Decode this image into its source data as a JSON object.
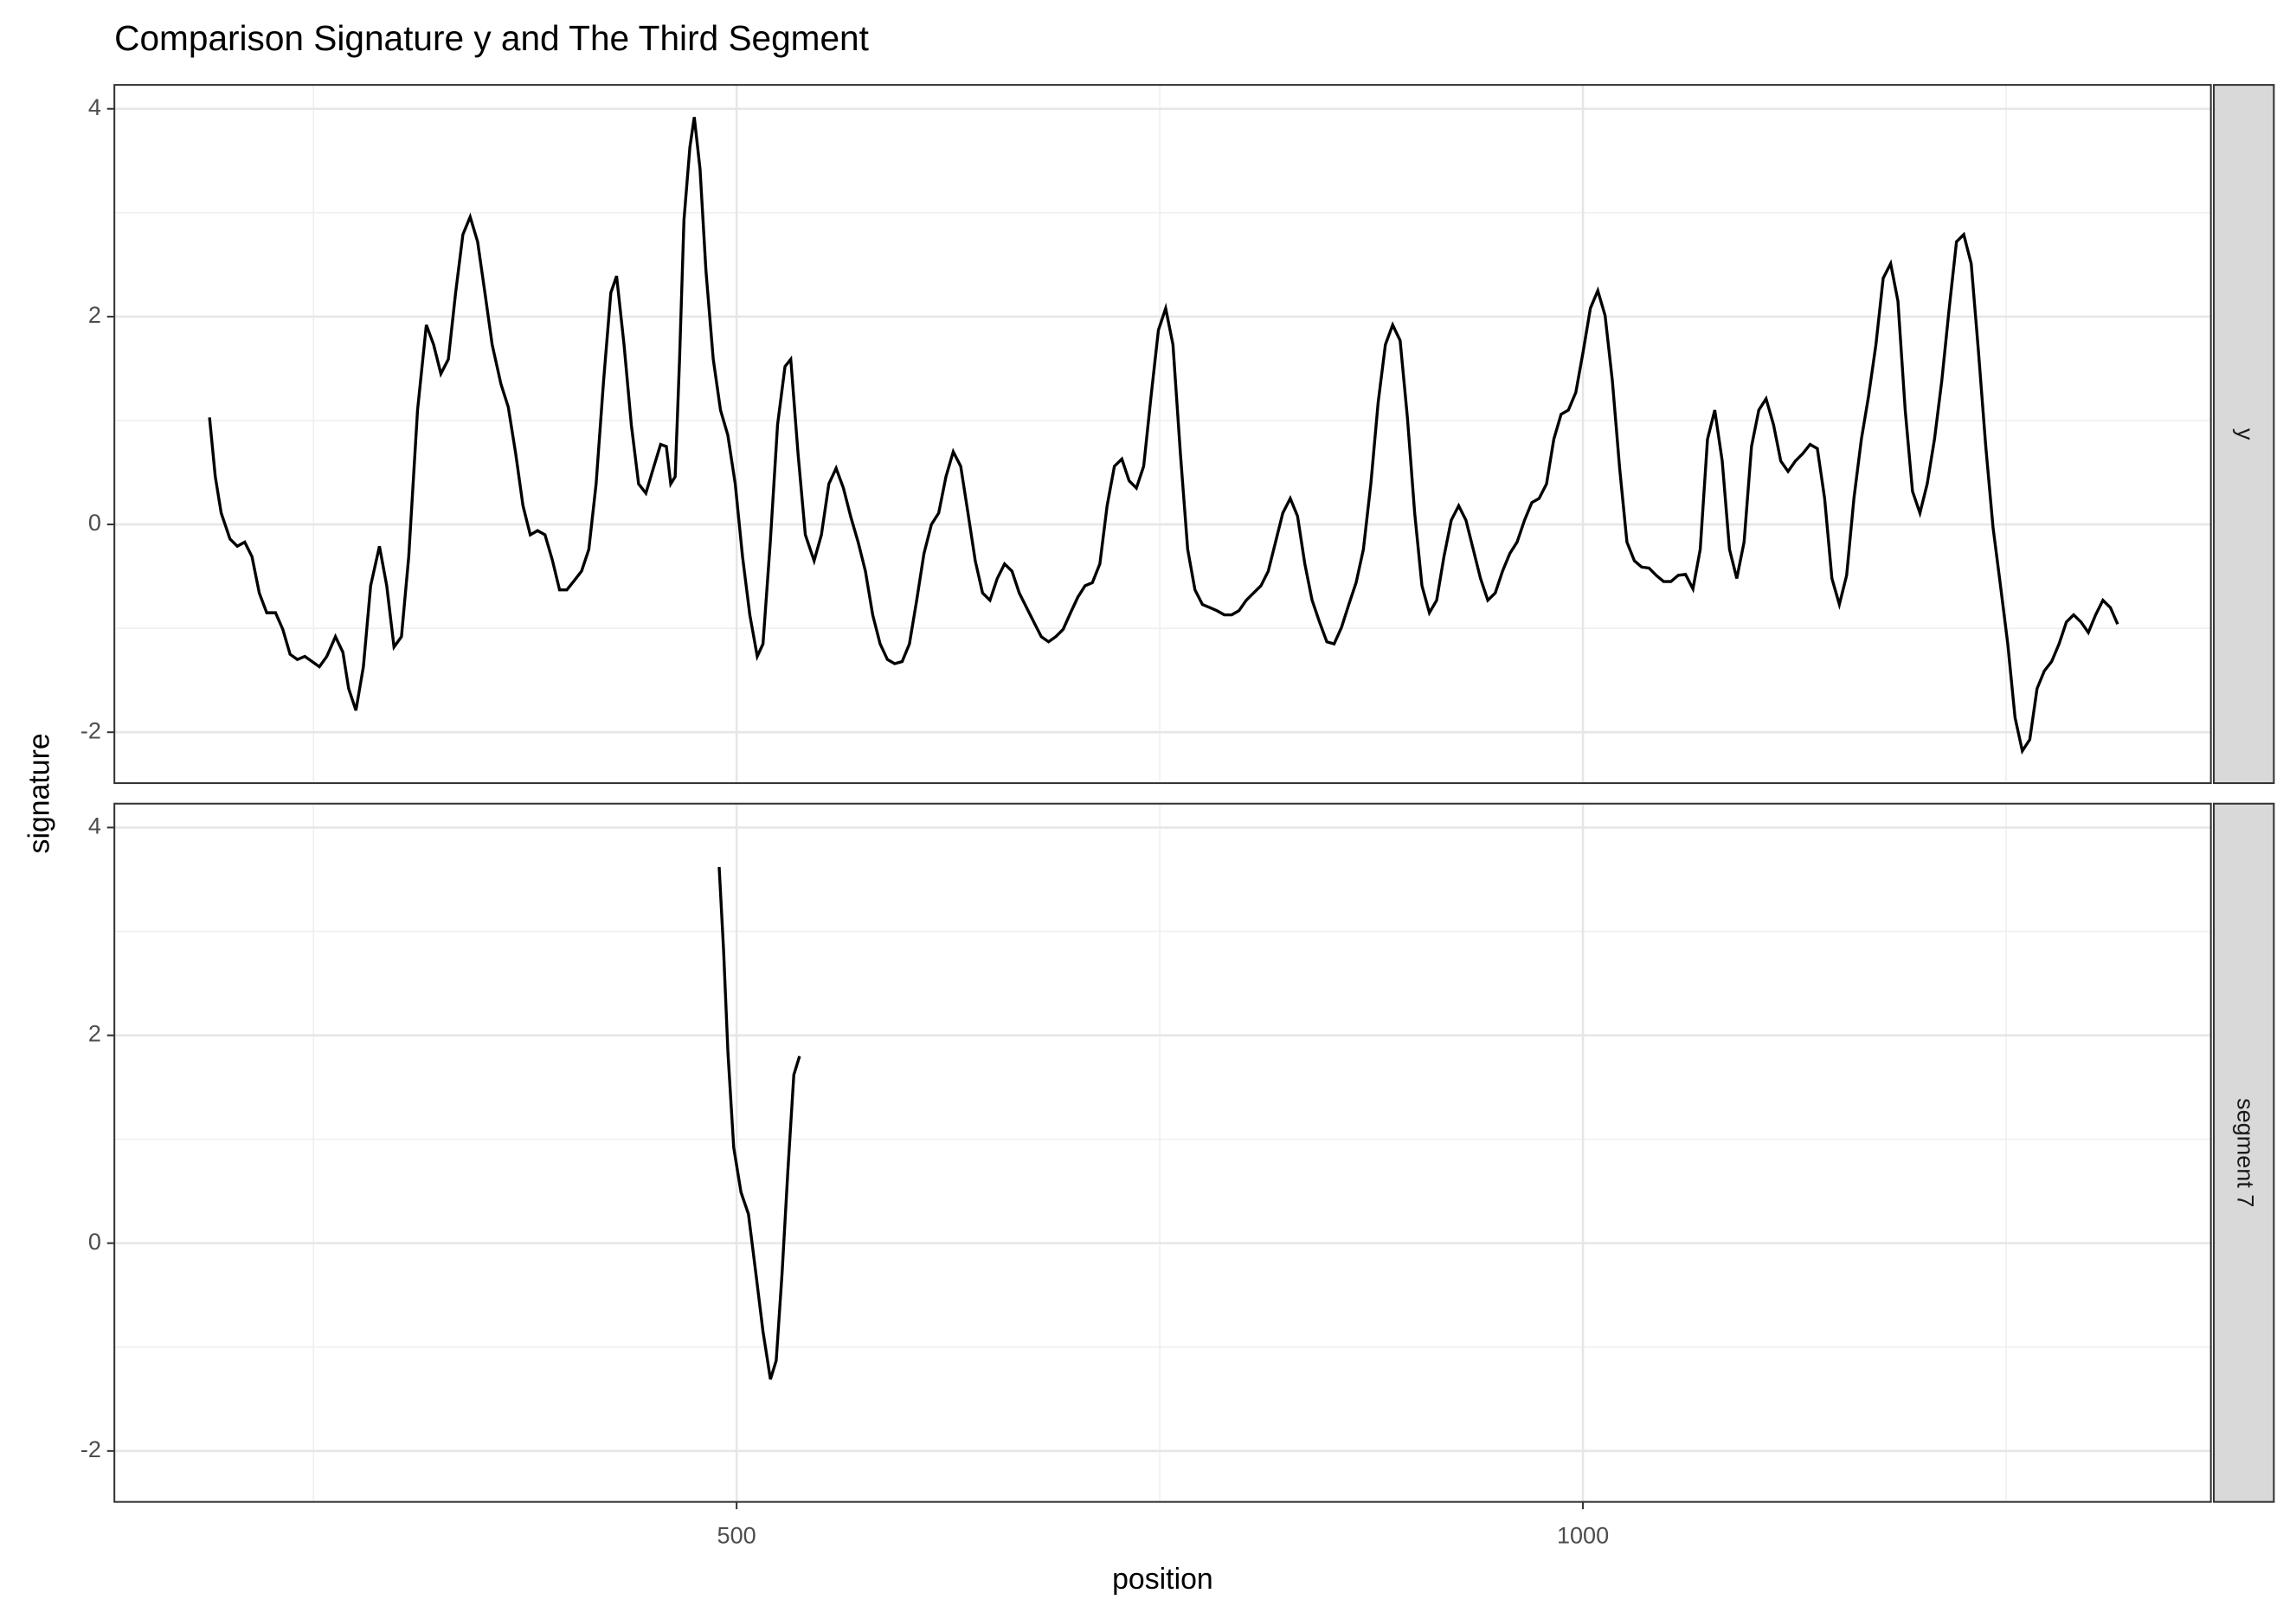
{
  "chart_data": {
    "type": "line",
    "title": "Comparison Signature y and The Third Segment",
    "x_label": "position",
    "y_label": "signature",
    "facets": true,
    "grid": true,
    "xlim": [
      132.4,
      1371
    ],
    "xticks": [
      500,
      1000
    ],
    "ylim": [
      -2.49,
      4.23
    ],
    "yticks": [
      -2,
      0,
      2,
      4
    ],
    "series": [
      {
        "name": "y",
        "color": "#000000",
        "x": [
          188.6,
          192,
          195.5,
          200.7,
          205,
          209.4,
          213.7,
          218,
          222.4,
          227.6,
          231.9,
          236.2,
          240.5,
          244.9,
          249.2,
          253.5,
          257.9,
          263,
          267.4,
          270.8,
          275.1,
          279.5,
          283.8,
          289,
          293.3,
          297.6,
          302,
          306.3,
          311.5,
          316.7,
          321,
          325.3,
          329.7,
          334,
          338.3,
          342.6,
          347,
          351.3,
          355.6,
          360.8,
          365.1,
          369.5,
          373.8,
          378.1,
          382.4,
          386.8,
          391.1,
          395.4,
          399.7,
          404.1,
          408.4,
          412.7,
          417,
          421.4,
          425.7,
          429.1,
          433.5,
          437.8,
          442.1,
          446.4,
          450.8,
          455.1,
          458.5,
          461.1,
          463.7,
          466.3,
          468.9,
          472.4,
          475,
          478.4,
          481.9,
          486.2,
          490.5,
          494.8,
          499.2,
          503.5,
          507.8,
          512.2,
          515.6,
          519.9,
          524.2,
          528.6,
          532,
          536.3,
          540.6,
          545.8,
          550.1,
          554.5,
          558.8,
          563.1,
          567.5,
          571.8,
          576.1,
          580.4,
          584.8,
          589.1,
          593.4,
          597.8,
          602.1,
          606.4,
          610.7,
          615.1,
          619.4,
          623.7,
          628,
          632.4,
          636.7,
          641,
          645.3,
          649.7,
          654,
          658.3,
          662.7,
          667,
          671.3,
          675.6,
          680,
          684.3,
          688.6,
          692.9,
          697.3,
          701.6,
          705.9,
          710.2,
          714.6,
          718.9,
          723.2,
          727.6,
          731.9,
          736.2,
          740.5,
          744.9,
          749.2,
          753.5,
          757.8,
          762.2,
          766.5,
          770.8,
          775.2,
          779.5,
          783.8,
          788.1,
          792.5,
          796.8,
          801.1,
          805.4,
          809.8,
          814.1,
          818.4,
          822.7,
          827.1,
          831.4,
          835.7,
          840,
          844.4,
          848.7,
          853,
          857.4,
          861.7,
          866,
          870.3,
          874.7,
          879,
          883.3,
          887.6,
          892,
          896.3,
          900.6,
          904.9,
          909.3,
          913.6,
          917.9,
          922.2,
          926.6,
          930.9,
          935.2,
          939.5,
          943.8,
          948.2,
          952.5,
          956.8,
          961.1,
          965.5,
          969.8,
          974.1,
          978.5,
          982.8,
          987.1,
          991.4,
          995.8,
          1000.1,
          1004.4,
          1008.8,
          1013.1,
          1017.4,
          1021.7,
          1026,
          1030.4,
          1034.7,
          1039,
          1043.3,
          1047.7,
          1052,
          1056.3,
          1060.6,
          1065,
          1069.3,
          1073.6,
          1077.9,
          1082.3,
          1086.6,
          1090.9,
          1095.2,
          1099.6,
          1103.9,
          1108.2,
          1112.6,
          1116.9,
          1121.2,
          1125.5,
          1129.8,
          1134.2,
          1138.5,
          1142.8,
          1147.1,
          1151.5,
          1155.8,
          1160.1,
          1164.5,
          1168.8,
          1173.1,
          1177.4,
          1181.8,
          1186.1,
          1190.4,
          1194.7,
          1199.1,
          1203.4,
          1207.7,
          1212,
          1216.4,
          1220.7,
          1225,
          1229.4,
          1233.7,
          1238,
          1242.3,
          1246.7,
          1251,
          1255.3,
          1259.6,
          1264,
          1268.3,
          1272.6,
          1276.9,
          1281.3,
          1285.6,
          1289.9,
          1294.3,
          1298.6,
          1302.9,
          1307.2,
          1311.6,
          1315.9
        ],
        "values": [
          1.03,
          0.46,
          0.11,
          -0.14,
          -0.21,
          -0.17,
          -0.31,
          -0.66,
          -0.85,
          -0.85,
          -1.01,
          -1.25,
          -1.3,
          -1.27,
          -1.32,
          -1.37,
          -1.27,
          -1.08,
          -1.23,
          -1.58,
          -1.79,
          -1.37,
          -0.59,
          -0.21,
          -0.59,
          -1.18,
          -1.08,
          -0.31,
          1.1,
          1.92,
          1.73,
          1.45,
          1.59,
          2.23,
          2.79,
          2.96,
          2.72,
          2.23,
          1.73,
          1.35,
          1.13,
          0.68,
          0.18,
          -0.1,
          -0.06,
          -0.1,
          -0.34,
          -0.63,
          -0.63,
          -0.54,
          -0.45,
          -0.24,
          0.39,
          1.38,
          2.23,
          2.39,
          1.73,
          0.96,
          0.39,
          0.3,
          0.54,
          0.77,
          0.75,
          0.39,
          0.46,
          1.59,
          2.93,
          3.63,
          3.92,
          3.42,
          2.44,
          1.59,
          1.1,
          0.86,
          0.39,
          -0.31,
          -0.87,
          -1.27,
          -1.15,
          -0.17,
          0.96,
          1.52,
          1.59,
          0.68,
          -0.1,
          -0.35,
          -0.1,
          0.39,
          0.54,
          0.35,
          0.07,
          -0.17,
          -0.45,
          -0.87,
          -1.15,
          -1.3,
          -1.34,
          -1.32,
          -1.15,
          -0.73,
          -0.28,
          0,
          0.11,
          0.46,
          0.7,
          0.56,
          0.11,
          -0.35,
          -0.66,
          -0.73,
          -0.52,
          -0.38,
          -0.45,
          -0.66,
          -0.8,
          -0.94,
          -1.08,
          -1.13,
          -1.08,
          -1.01,
          -0.85,
          -0.7,
          -0.59,
          -0.56,
          -0.38,
          0.18,
          0.56,
          0.63,
          0.42,
          0.35,
          0.56,
          1.24,
          1.87,
          2.08,
          1.73,
          0.68,
          -0.24,
          -0.63,
          -0.77,
          -0.8,
          -0.83,
          -0.87,
          -0.87,
          -0.83,
          -0.73,
          -0.66,
          -0.59,
          -0.45,
          -0.17,
          0.11,
          0.25,
          0.08,
          -0.38,
          -0.73,
          -0.94,
          -1.13,
          -1.15,
          -0.99,
          -0.77,
          -0.56,
          -0.24,
          0.39,
          1.17,
          1.73,
          1.92,
          1.77,
          1.03,
          0.11,
          -0.59,
          -0.85,
          -0.73,
          -0.31,
          0.04,
          0.18,
          0.04,
          -0.24,
          -0.52,
          -0.73,
          -0.66,
          -0.45,
          -0.28,
          -0.17,
          0.04,
          0.21,
          0.25,
          0.39,
          0.82,
          1.06,
          1.1,
          1.27,
          1.66,
          2.08,
          2.25,
          2.01,
          1.38,
          0.54,
          -0.17,
          -0.35,
          -0.41,
          -0.42,
          -0.49,
          -0.55,
          -0.55,
          -0.49,
          -0.48,
          -0.62,
          -0.24,
          0.82,
          1.1,
          0.61,
          -0.24,
          -0.52,
          -0.17,
          0.75,
          1.1,
          1.21,
          0.96,
          0.61,
          0.51,
          0.61,
          0.68,
          0.77,
          0.73,
          0.25,
          -0.52,
          -0.77,
          -0.49,
          0.25,
          0.82,
          1.24,
          1.73,
          2.37,
          2.51,
          2.15,
          1.1,
          0.32,
          0.11,
          0.39,
          0.82,
          1.38,
          2.08,
          2.72,
          2.79,
          2.51,
          1.66,
          0.75,
          -0.03,
          -0.59,
          -1.15,
          -1.86,
          -2.18,
          -2.07,
          -1.58,
          -1.41,
          -1.32,
          -1.15,
          -0.94,
          -0.87,
          -0.94,
          -1.04,
          -0.87,
          -0.73,
          -0.8,
          -0.96
        ]
      },
      {
        "name": "segment 7",
        "color": "#000000",
        "x": [
          489.7,
          492.3,
          494.9,
          498.3,
          502.6,
          507,
          511.3,
          515.6,
          520,
          523.4,
          526.9,
          530.3,
          533.8,
          537.2
        ],
        "values": [
          3.62,
          2.82,
          1.83,
          0.92,
          0.49,
          0.28,
          -0.28,
          -0.85,
          -1.31,
          -1.13,
          -0.28,
          0.7,
          1.62,
          1.8
        ]
      }
    ]
  }
}
